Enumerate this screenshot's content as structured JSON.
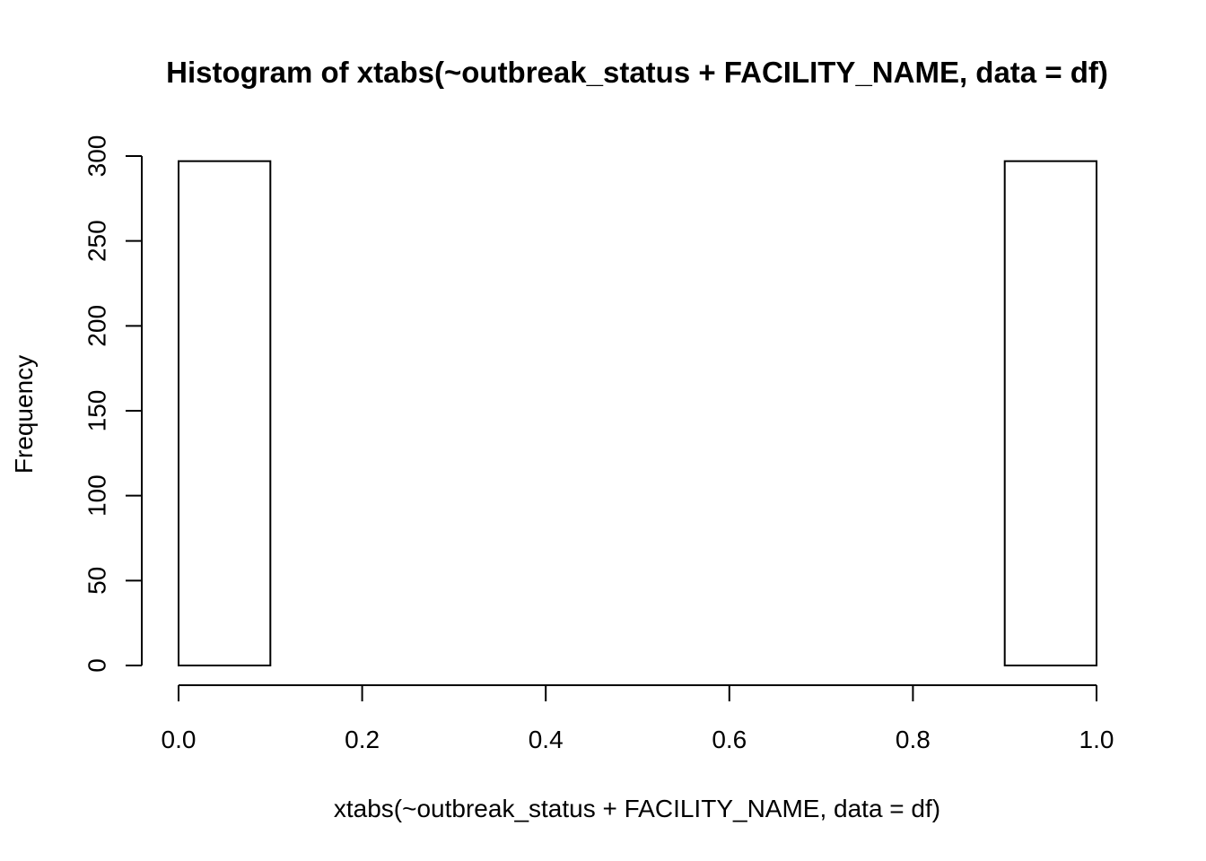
{
  "chart_data": {
    "type": "bar",
    "title": "Histogram of xtabs(~outbreak_status + FACILITY_NAME, data = df)",
    "xlabel": "xtabs(~outbreak_status + FACILITY_NAME, data = df)",
    "ylabel": "Frequency",
    "xlim": [
      0,
      1
    ],
    "ylim": [
      0,
      300
    ],
    "x_ticks": [
      "0.0",
      "0.2",
      "0.4",
      "0.6",
      "0.8",
      "1.0"
    ],
    "y_ticks": [
      "0",
      "50",
      "100",
      "150",
      "200",
      "250",
      "300"
    ],
    "bins": [
      {
        "start": 0.0,
        "end": 0.1,
        "count": 297
      },
      {
        "start": 0.1,
        "end": 0.2,
        "count": 0
      },
      {
        "start": 0.2,
        "end": 0.3,
        "count": 0
      },
      {
        "start": 0.3,
        "end": 0.4,
        "count": 0
      },
      {
        "start": 0.4,
        "end": 0.5,
        "count": 0
      },
      {
        "start": 0.5,
        "end": 0.6,
        "count": 0
      },
      {
        "start": 0.6,
        "end": 0.7,
        "count": 0
      },
      {
        "start": 0.7,
        "end": 0.8,
        "count": 0
      },
      {
        "start": 0.8,
        "end": 0.9,
        "count": 0
      },
      {
        "start": 0.9,
        "end": 1.0,
        "count": 297
      }
    ],
    "grid": false,
    "colors": {
      "bar_fill": "#ffffff",
      "bar_stroke": "#000000"
    }
  }
}
